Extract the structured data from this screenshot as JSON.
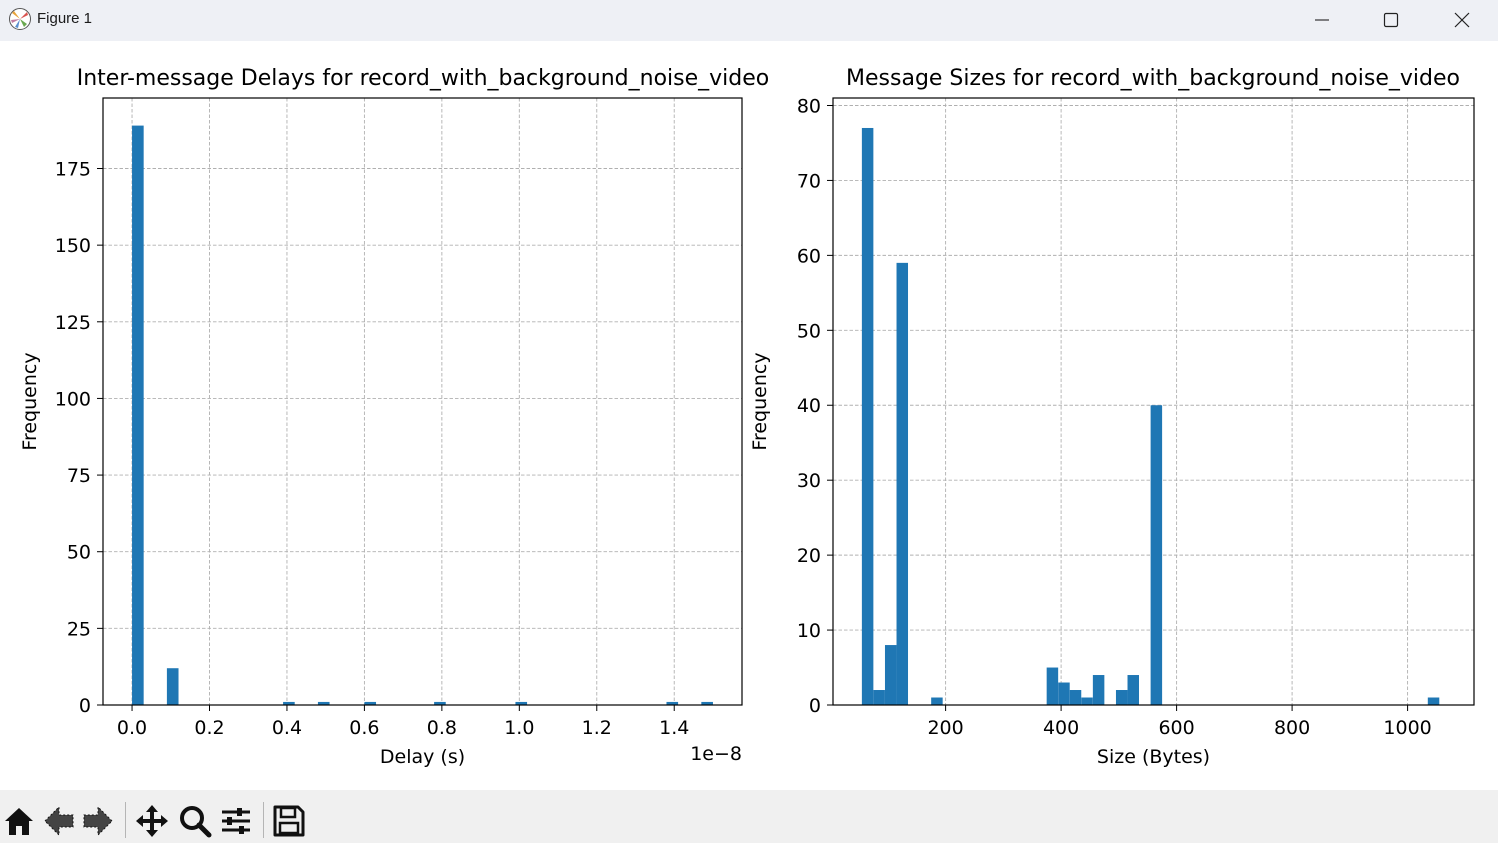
{
  "window": {
    "title": "Figure 1"
  },
  "toolbar": {
    "buttons": [
      {
        "name": "home-icon"
      },
      {
        "name": "back-arrow-icon"
      },
      {
        "name": "forward-arrow-icon"
      },
      {
        "name": "pan-icon"
      },
      {
        "name": "zoom-icon"
      },
      {
        "name": "configure-subplots-icon"
      },
      {
        "name": "save-icon"
      }
    ]
  },
  "colors": {
    "bar": "#1f77b4",
    "grid": "#b0b0b0",
    "titlebar": "#eef0f5",
    "toolbar": "#f0f0f0"
  },
  "chart_data": [
    {
      "type": "bar",
      "title": "Inter-message Delays for record_with_background_noise_video",
      "xlabel": "Delay (s)",
      "ylabel": "Frequency",
      "offset_text": "1e−8",
      "xlim": [
        -0.075,
        1.575
      ],
      "ylim": [
        0,
        198
      ],
      "xticks": [
        0.0,
        0.2,
        0.4,
        0.6,
        0.8,
        1.0,
        1.2,
        1.4
      ],
      "xtick_labels": [
        "0.0",
        "0.2",
        "0.4",
        "0.6",
        "0.8",
        "1.0",
        "1.2",
        "1.4"
      ],
      "yticks": [
        0,
        25,
        50,
        75,
        100,
        125,
        150,
        175
      ],
      "ytick_labels": [
        "0",
        "25",
        "50",
        "75",
        "100",
        "125",
        "150",
        "175"
      ],
      "bin_width": 0.03,
      "x": [
        0.0,
        0.09,
        0.39,
        0.48,
        0.6,
        0.78,
        0.99,
        1.38,
        1.47
      ],
      "values": [
        189,
        12,
        1,
        1,
        1,
        1,
        1,
        1,
        1
      ],
      "grid": true
    },
    {
      "type": "bar",
      "title": "Message Sizes for record_with_background_noise_video",
      "xlabel": "Size (Bytes)",
      "ylabel": "Frequency",
      "xlim": [
        5,
        1115
      ],
      "ylim": [
        0,
        81
      ],
      "xticks": [
        200,
        400,
        600,
        800,
        1000
      ],
      "xtick_labels": [
        "200",
        "400",
        "600",
        "800",
        "1000"
      ],
      "yticks": [
        0,
        10,
        20,
        30,
        40,
        50,
        60,
        70,
        80
      ],
      "ytick_labels": [
        "0",
        "10",
        "20",
        "30",
        "40",
        "50",
        "60",
        "70",
        "80"
      ],
      "bin_width": 19.9,
      "x": [
        55,
        75,
        95,
        115,
        175,
        375,
        395,
        415,
        435,
        455,
        495,
        515,
        555,
        1035
      ],
      "values": [
        77,
        2,
        8,
        59,
        1,
        5,
        3,
        2,
        1,
        4,
        2,
        4,
        40,
        1
      ],
      "grid": true
    }
  ]
}
